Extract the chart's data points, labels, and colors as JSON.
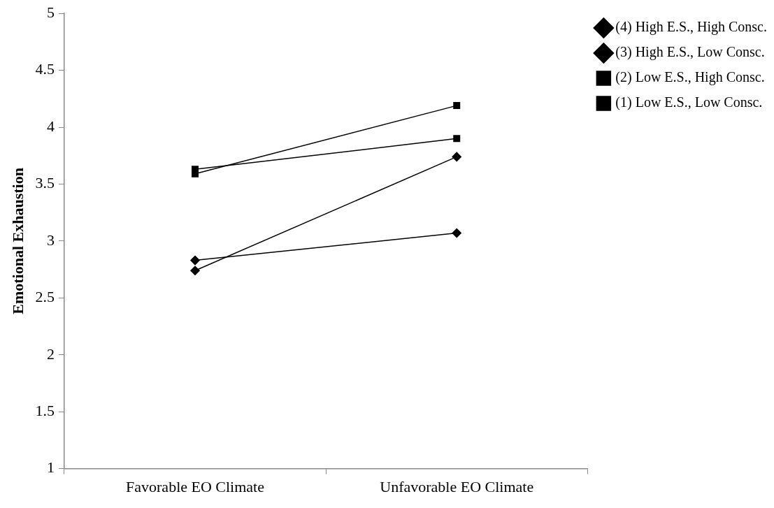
{
  "chart_data": {
    "type": "line",
    "ylabel": "Emotional Exhaustion",
    "categories": [
      "Favorable EO Climate",
      "Unfavorable EO Climate"
    ],
    "series": [
      {
        "name": "(4) High E.S., High Consc.",
        "color": "#000000",
        "marker": "diamond",
        "values": [
          2.74,
          3.74
        ]
      },
      {
        "name": "(3) High E.S., Low Consc.",
        "color": "#000000",
        "marker": "diamond",
        "values": [
          2.83,
          3.07
        ]
      },
      {
        "name": "(2) Low E.S., High Consc.",
        "color": "#000000",
        "marker": "square",
        "values": [
          3.59,
          4.19
        ]
      },
      {
        "name": "(1) Low E.S., Low Consc.",
        "color": "#000000",
        "marker": "square",
        "values": [
          3.63,
          3.9
        ]
      }
    ],
    "ylim": [
      1,
      5
    ],
    "yticks": [
      1,
      1.5,
      2,
      2.5,
      3,
      3.5,
      4,
      4.5,
      5
    ],
    "grid": false,
    "legend": "top right",
    "line_style": "solid"
  }
}
